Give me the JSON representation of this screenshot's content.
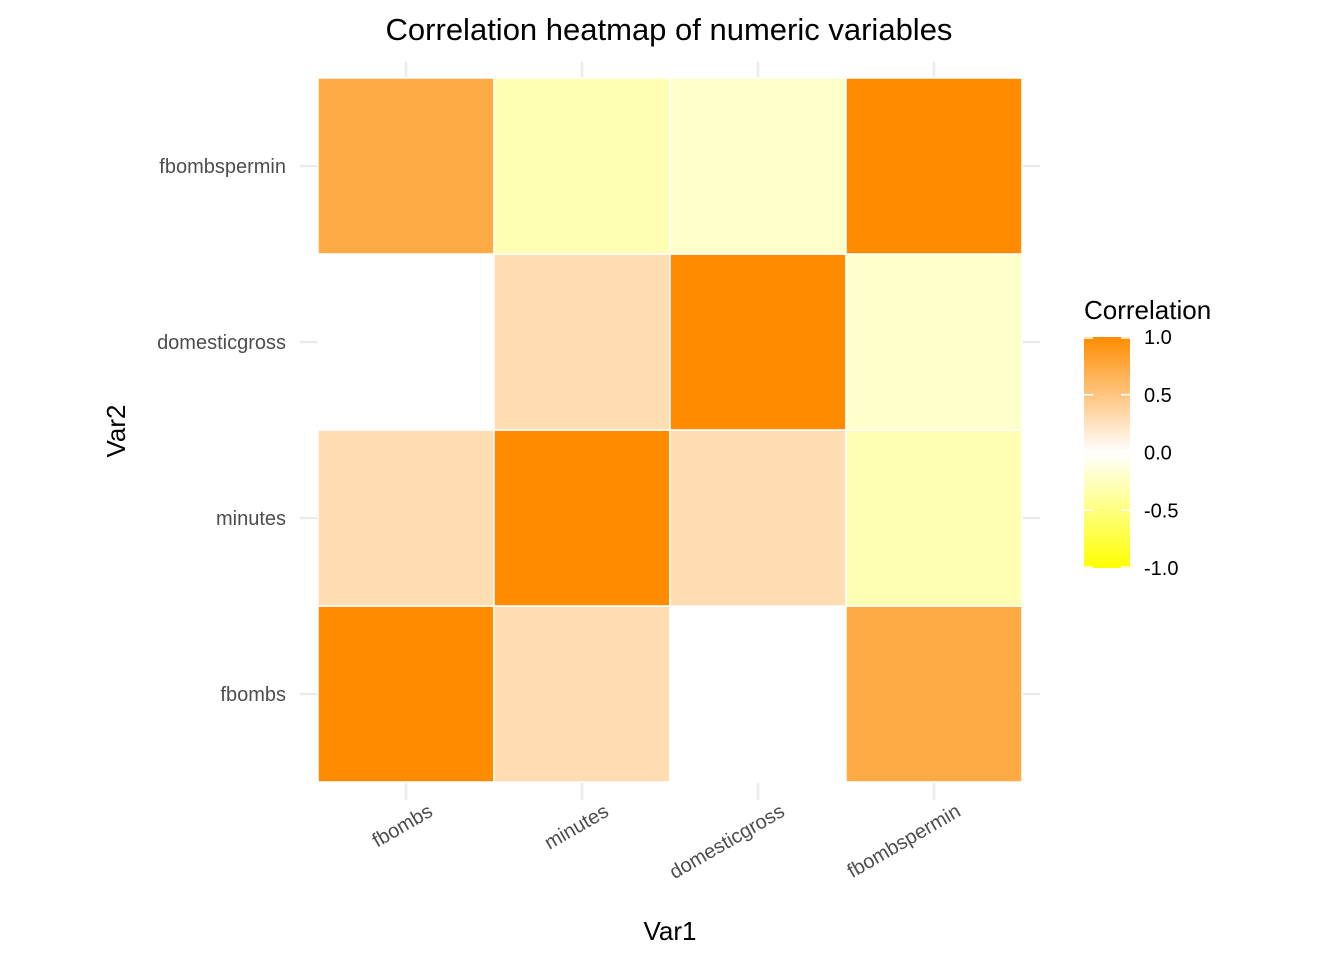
{
  "chart_data": {
    "type": "heatmap",
    "title": "Correlation heatmap of numeric variables",
    "xlabel": "Var1",
    "ylabel": "Var2",
    "x_categories": [
      "fbombs",
      "minutes",
      "domesticgross",
      "fbombspermin"
    ],
    "y_categories": [
      "fbombs",
      "minutes",
      "domesticgross",
      "fbombspermin"
    ],
    "matrix": [
      [
        1.0,
        0.3,
        0.0,
        0.73
      ],
      [
        0.3,
        1.0,
        0.3,
        -0.3
      ],
      [
        0.0,
        0.3,
        1.0,
        -0.2
      ],
      [
        0.73,
        -0.3,
        -0.2,
        1.0
      ]
    ],
    "legend": {
      "title": "Correlation",
      "position": "right",
      "ticks": [
        1.0,
        0.5,
        0.0,
        -0.5,
        -1.0
      ],
      "tick_labels": [
        "1.0",
        "0.5",
        "0.0",
        "-0.5",
        "-1.0"
      ]
    },
    "color_scale": {
      "low": "#ffff00",
      "mid": "#ffffff",
      "high": "#ff8c00",
      "limits": [
        -1,
        1
      ]
    },
    "grid": true
  }
}
